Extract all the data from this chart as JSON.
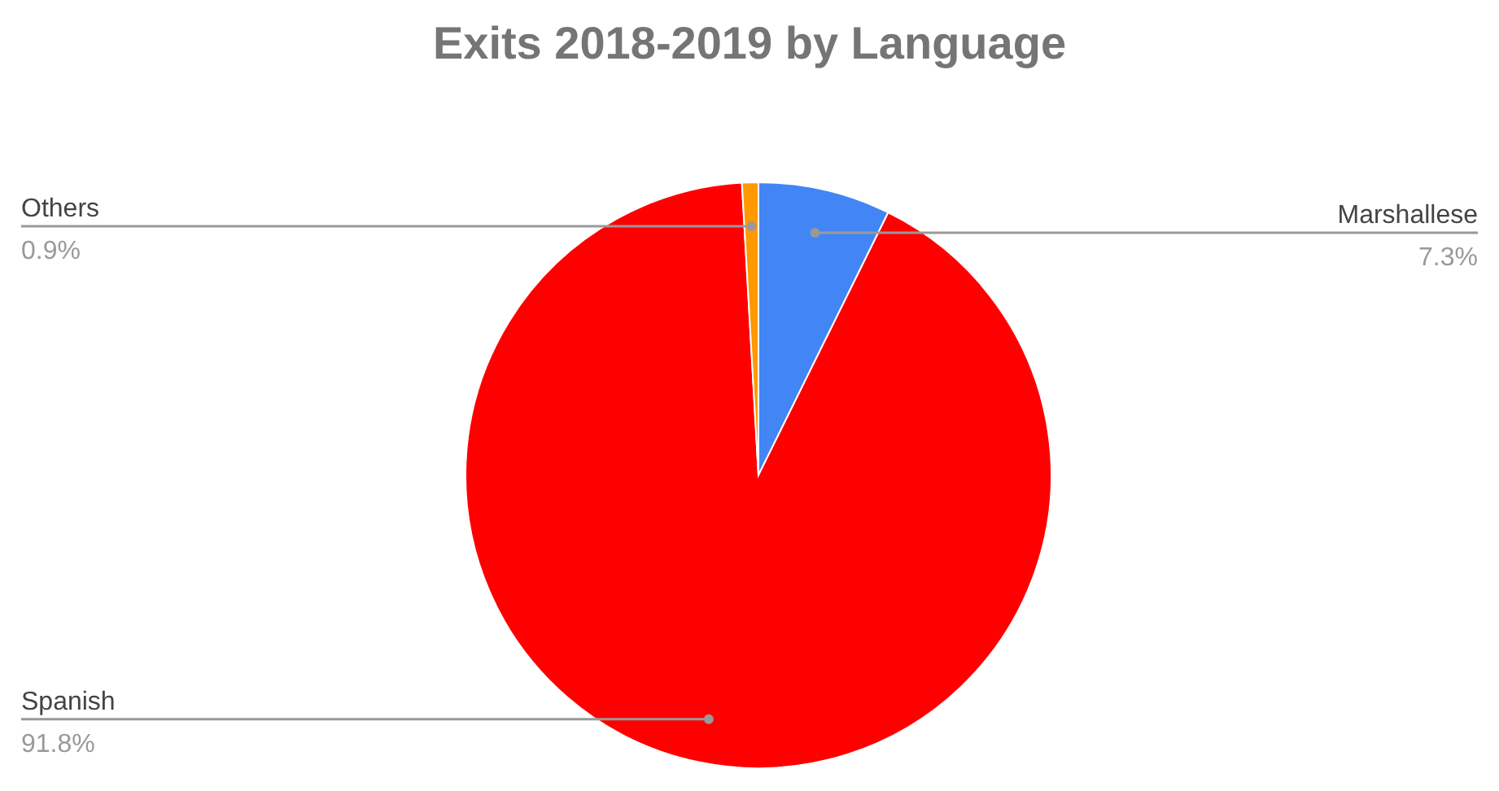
{
  "chart_data": {
    "type": "pie",
    "title": "Exits 2018-2019 by Language",
    "categories": [
      "Marshallese",
      "Spanish",
      "Others"
    ],
    "values": [
      7.3,
      91.8,
      0.9
    ],
    "value_labels": [
      "7.3%",
      "91.8%",
      "0.9%"
    ],
    "colors": [
      "#4285f4",
      "#ff0000",
      "#ff9900"
    ]
  }
}
